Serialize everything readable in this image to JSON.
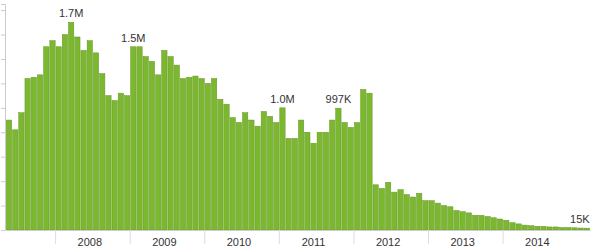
{
  "chart_data": {
    "type": "bar",
    "categories": [
      null,
      null,
      null,
      null,
      null,
      null,
      null,
      null,
      null,
      null,
      null,
      null,
      null,
      "2008",
      null,
      null,
      null,
      null,
      null,
      null,
      null,
      null,
      null,
      null,
      null,
      "2009",
      null,
      null,
      null,
      null,
      null,
      null,
      null,
      null,
      null,
      null,
      null,
      "2010",
      null,
      null,
      null,
      null,
      null,
      null,
      null,
      null,
      null,
      null,
      null,
      "2011",
      null,
      null,
      null,
      null,
      null,
      null,
      null,
      null,
      null,
      null,
      null,
      "2012",
      null,
      null,
      null,
      null,
      null,
      null,
      null,
      null,
      null,
      null,
      null,
      "2013",
      null,
      null,
      null,
      null,
      null,
      null,
      null,
      null,
      null,
      null,
      null,
      "2014",
      null,
      null,
      null,
      null,
      null,
      null,
      null,
      null
    ],
    "values": [
      900000,
      820000,
      960000,
      1240000,
      1250000,
      1270000,
      1500000,
      1550000,
      1500000,
      1600000,
      1700000,
      1580000,
      1470000,
      1550000,
      1450000,
      1280000,
      1100000,
      1060000,
      1120000,
      1100000,
      1500000,
      1500000,
      1420000,
      1380000,
      1270000,
      1470000,
      1420000,
      1350000,
      1240000,
      1250000,
      1260000,
      1240000,
      1200000,
      1240000,
      1070000,
      1030000,
      920000,
      880000,
      960000,
      900000,
      850000,
      970000,
      930000,
      880000,
      1000000,
      750000,
      750000,
      900000,
      800000,
      710000,
      800000,
      800000,
      900000,
      997000,
      880000,
      840000,
      880000,
      1150000,
      1120000,
      370000,
      340000,
      390000,
      310000,
      330000,
      290000,
      270000,
      300000,
      240000,
      240000,
      220000,
      200000,
      190000,
      160000,
      150000,
      140000,
      120000,
      120000,
      110000,
      100000,
      90000,
      80000,
      60000,
      50000,
      40000,
      35000,
      30000,
      30000,
      25000,
      25000,
      20000,
      20000,
      18000,
      16000,
      15000
    ],
    "value_labels": [
      null,
      null,
      null,
      null,
      null,
      null,
      null,
      null,
      null,
      null,
      "1.7M",
      null,
      null,
      null,
      null,
      null,
      null,
      null,
      null,
      null,
      "1.5M",
      null,
      null,
      null,
      null,
      null,
      null,
      null,
      null,
      null,
      null,
      null,
      null,
      null,
      null,
      null,
      null,
      null,
      null,
      null,
      null,
      null,
      null,
      null,
      "1.0M",
      null,
      null,
      null,
      null,
      null,
      null,
      null,
      null,
      "997K",
      null,
      null,
      null,
      null,
      null,
      null,
      null,
      null,
      null,
      null,
      null,
      null,
      null,
      null,
      null,
      null,
      null,
      null,
      null,
      null,
      null,
      null,
      null,
      null,
      null,
      null,
      null,
      null,
      null,
      null,
      null,
      null,
      null,
      null,
      null,
      null,
      null,
      null,
      null,
      "15K"
    ],
    "data_labels": true,
    "color": "#7cb82f",
    "ylim": [
      0,
      1850000
    ],
    "yticks": [
      0,
      200000,
      400000,
      600000,
      800000,
      1000000,
      1200000,
      1400000,
      1600000,
      1800000
    ],
    "tick_labels": "x",
    "grid": false
  }
}
